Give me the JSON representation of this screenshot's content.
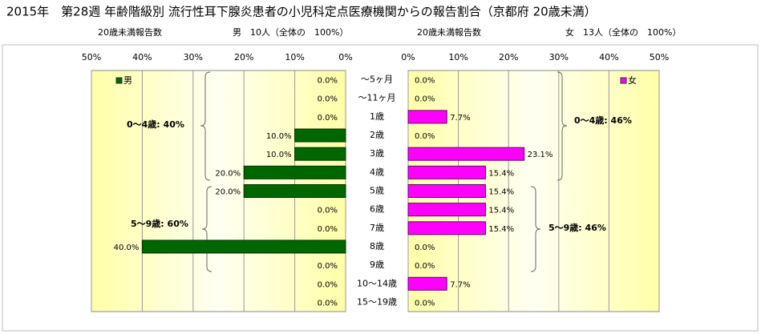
{
  "chart_data": {
    "type": "butterfly",
    "title": "2015年　第28週 年齢階級別 流行性耳下腺炎患者の小児科定点医療機関からの報告割合（京都府 20歳未満）",
    "left_subtitle": [
      "20歳未満報告数",
      "男　10人（全体の　100%）"
    ],
    "right_subtitle": [
      "20歳未満報告数",
      "女　13人（全体の　100%）"
    ],
    "categories": [
      "～5ヶ月",
      "～11ヶ月",
      "1歳",
      "2歳",
      "3歳",
      "4歳",
      "5歳",
      "6歳",
      "7歳",
      "8歳",
      "9歳",
      "10～14歳",
      "15～19歳"
    ],
    "series": [
      {
        "name": "男",
        "color": "#006600",
        "values": [
          0,
          0,
          0,
          10,
          10,
          20,
          20,
          0,
          0,
          40,
          0,
          0,
          0
        ],
        "value_labels": [
          "0.0%",
          "0.0%",
          "0.0%",
          "10.0%",
          "10.0%",
          "20.0%",
          "20.0%",
          "0.0%",
          "0.0%",
          "40.0%",
          "0.0%",
          "0.0%",
          "0.0%"
        ]
      },
      {
        "name": "女",
        "color": "#ff00ff",
        "values": [
          0,
          0,
          7.7,
          0,
          23.1,
          15.4,
          15.4,
          15.4,
          15.4,
          0,
          0,
          7.7,
          0
        ],
        "value_labels": [
          "0.0%",
          "0.0%",
          "7.7%",
          "0.0%",
          "23.1%",
          "15.4%",
          "15.4%",
          "15.4%",
          "15.4%",
          "0.0%",
          "0.0%",
          "7.7%",
          "0.0%"
        ]
      }
    ],
    "xlim": [
      0,
      50
    ],
    "xticks": [
      {
        "value": 0,
        "label": "0%"
      },
      {
        "value": 10,
        "label": "10%"
      },
      {
        "value": 20,
        "label": "20%"
      },
      {
        "value": 30,
        "label": "30%"
      },
      {
        "value": 40,
        "label": "40%"
      },
      {
        "value": 50,
        "label": "50%"
      }
    ],
    "grid": true,
    "annotations": [
      "0～4歳: 40%",
      "5～9歳: 60%",
      "0～4歳: 46%",
      "5～9歳: 46%"
    ]
  }
}
